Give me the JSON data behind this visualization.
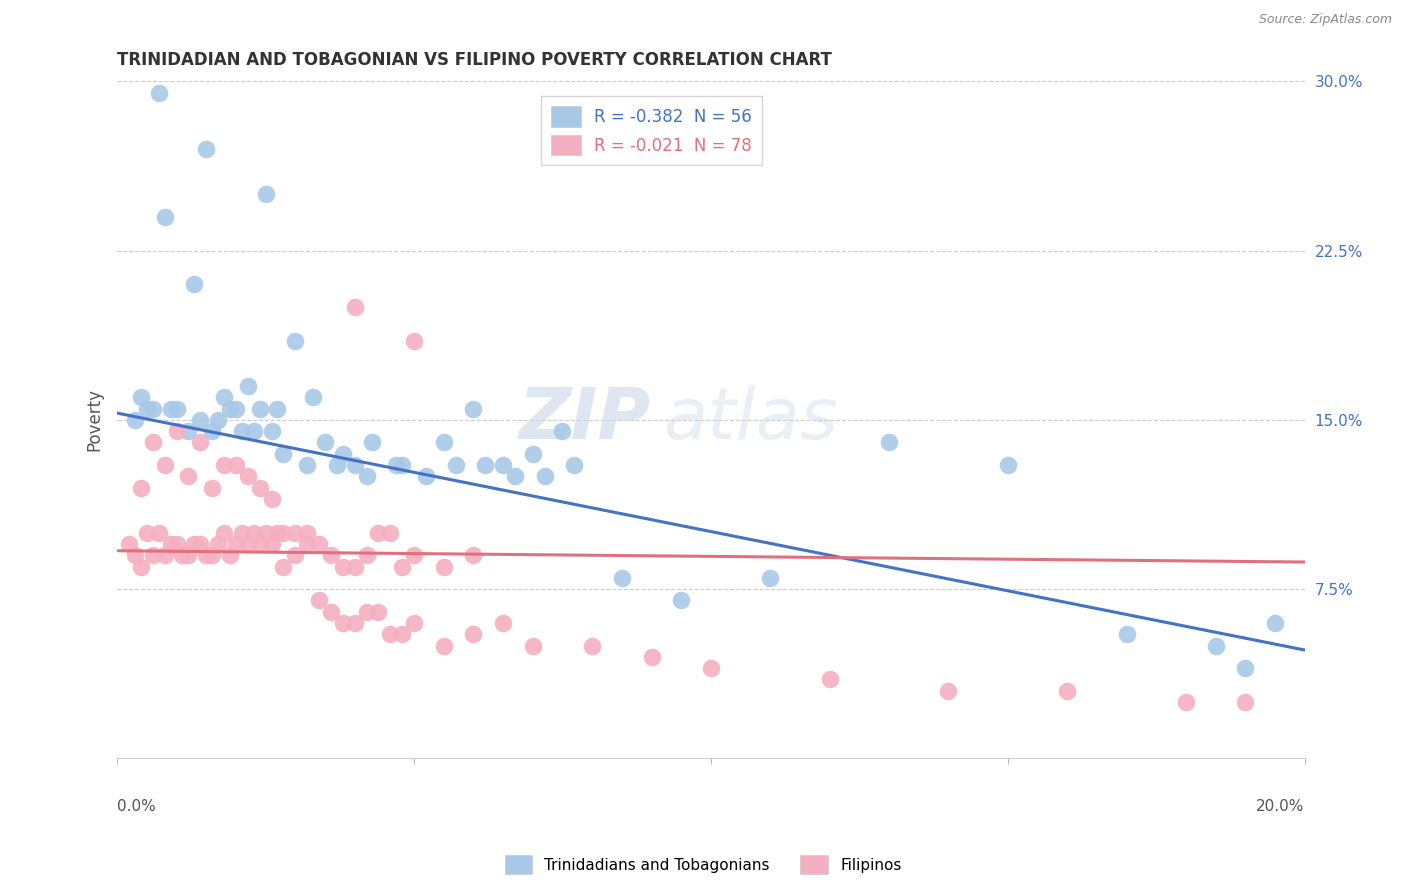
{
  "title": "TRINIDADIAN AND TOBAGONIAN VS FILIPINO POVERTY CORRELATION CHART",
  "source": "Source: ZipAtlas.com",
  "ylabel": "Poverty",
  "xlim": [
    0.0,
    0.2
  ],
  "ylim": [
    0.0,
    0.3
  ],
  "yticks": [
    0.075,
    0.15,
    0.225,
    0.3
  ],
  "ytick_labels": [
    "7.5%",
    "15.0%",
    "22.5%",
    "30.0%"
  ],
  "xtick_labels": [
    "0.0%",
    "20.0%"
  ],
  "legend_blue_label": "R = -0.382  N = 56",
  "legend_pink_label": "R = -0.021  N = 78",
  "legend_scatter_blue": "Trinidadians and Tobagonians",
  "legend_scatter_pink": "Filipinos",
  "blue_color": "#A8C8E8",
  "pink_color": "#F4B0C0",
  "blue_line_color": "#4472C4",
  "pink_line_color": "#E07080",
  "watermark_zip": "ZIP",
  "watermark_atlas": "atlas",
  "blue_scatter_x": [
    0.005,
    0.007,
    0.008,
    0.01,
    0.013,
    0.015,
    0.016,
    0.017,
    0.018,
    0.02,
    0.022,
    0.023,
    0.025,
    0.027,
    0.03,
    0.033,
    0.035,
    0.038,
    0.04,
    0.043,
    0.048,
    0.055,
    0.06,
    0.065,
    0.07,
    0.075,
    0.003,
    0.004,
    0.006,
    0.009,
    0.012,
    0.014,
    0.019,
    0.021,
    0.024,
    0.026,
    0.028,
    0.032,
    0.037,
    0.042,
    0.047,
    0.052,
    0.057,
    0.062,
    0.067,
    0.072,
    0.077,
    0.085,
    0.095,
    0.11,
    0.13,
    0.15,
    0.17,
    0.185,
    0.19,
    0.195
  ],
  "blue_scatter_y": [
    0.155,
    0.295,
    0.24,
    0.155,
    0.21,
    0.27,
    0.145,
    0.15,
    0.16,
    0.155,
    0.165,
    0.145,
    0.25,
    0.155,
    0.185,
    0.16,
    0.14,
    0.135,
    0.13,
    0.14,
    0.13,
    0.14,
    0.155,
    0.13,
    0.135,
    0.145,
    0.15,
    0.16,
    0.155,
    0.155,
    0.145,
    0.15,
    0.155,
    0.145,
    0.155,
    0.145,
    0.135,
    0.13,
    0.13,
    0.125,
    0.13,
    0.125,
    0.13,
    0.13,
    0.125,
    0.125,
    0.13,
    0.08,
    0.07,
    0.08,
    0.14,
    0.13,
    0.055,
    0.05,
    0.04,
    0.06
  ],
  "pink_scatter_x": [
    0.002,
    0.003,
    0.004,
    0.005,
    0.006,
    0.007,
    0.008,
    0.009,
    0.01,
    0.011,
    0.012,
    0.013,
    0.014,
    0.015,
    0.016,
    0.017,
    0.018,
    0.019,
    0.02,
    0.021,
    0.022,
    0.023,
    0.024,
    0.025,
    0.026,
    0.027,
    0.028,
    0.03,
    0.032,
    0.034,
    0.036,
    0.038,
    0.04,
    0.042,
    0.044,
    0.046,
    0.048,
    0.05,
    0.055,
    0.06,
    0.004,
    0.006,
    0.008,
    0.01,
    0.012,
    0.014,
    0.016,
    0.018,
    0.02,
    0.022,
    0.024,
    0.026,
    0.028,
    0.03,
    0.032,
    0.034,
    0.036,
    0.038,
    0.04,
    0.042,
    0.044,
    0.046,
    0.048,
    0.05,
    0.055,
    0.06,
    0.065,
    0.07,
    0.08,
    0.09,
    0.1,
    0.12,
    0.14,
    0.16,
    0.18,
    0.19,
    0.04,
    0.05
  ],
  "pink_scatter_y": [
    0.095,
    0.09,
    0.085,
    0.1,
    0.09,
    0.1,
    0.09,
    0.095,
    0.095,
    0.09,
    0.09,
    0.095,
    0.095,
    0.09,
    0.09,
    0.095,
    0.1,
    0.09,
    0.095,
    0.1,
    0.095,
    0.1,
    0.095,
    0.1,
    0.095,
    0.1,
    0.085,
    0.09,
    0.1,
    0.095,
    0.09,
    0.085,
    0.085,
    0.09,
    0.1,
    0.1,
    0.085,
    0.09,
    0.085,
    0.09,
    0.12,
    0.14,
    0.13,
    0.145,
    0.125,
    0.14,
    0.12,
    0.13,
    0.13,
    0.125,
    0.12,
    0.115,
    0.1,
    0.1,
    0.095,
    0.07,
    0.065,
    0.06,
    0.06,
    0.065,
    0.065,
    0.055,
    0.055,
    0.06,
    0.05,
    0.055,
    0.06,
    0.05,
    0.05,
    0.045,
    0.04,
    0.035,
    0.03,
    0.03,
    0.025,
    0.025,
    0.2,
    0.185
  ],
  "blue_trend_y_start": 0.153,
  "blue_trend_y_end": 0.048,
  "pink_trend_y_start": 0.092,
  "pink_trend_y_end": 0.087,
  "background_color": "#FFFFFF",
  "grid_color": "#CCCCCC"
}
